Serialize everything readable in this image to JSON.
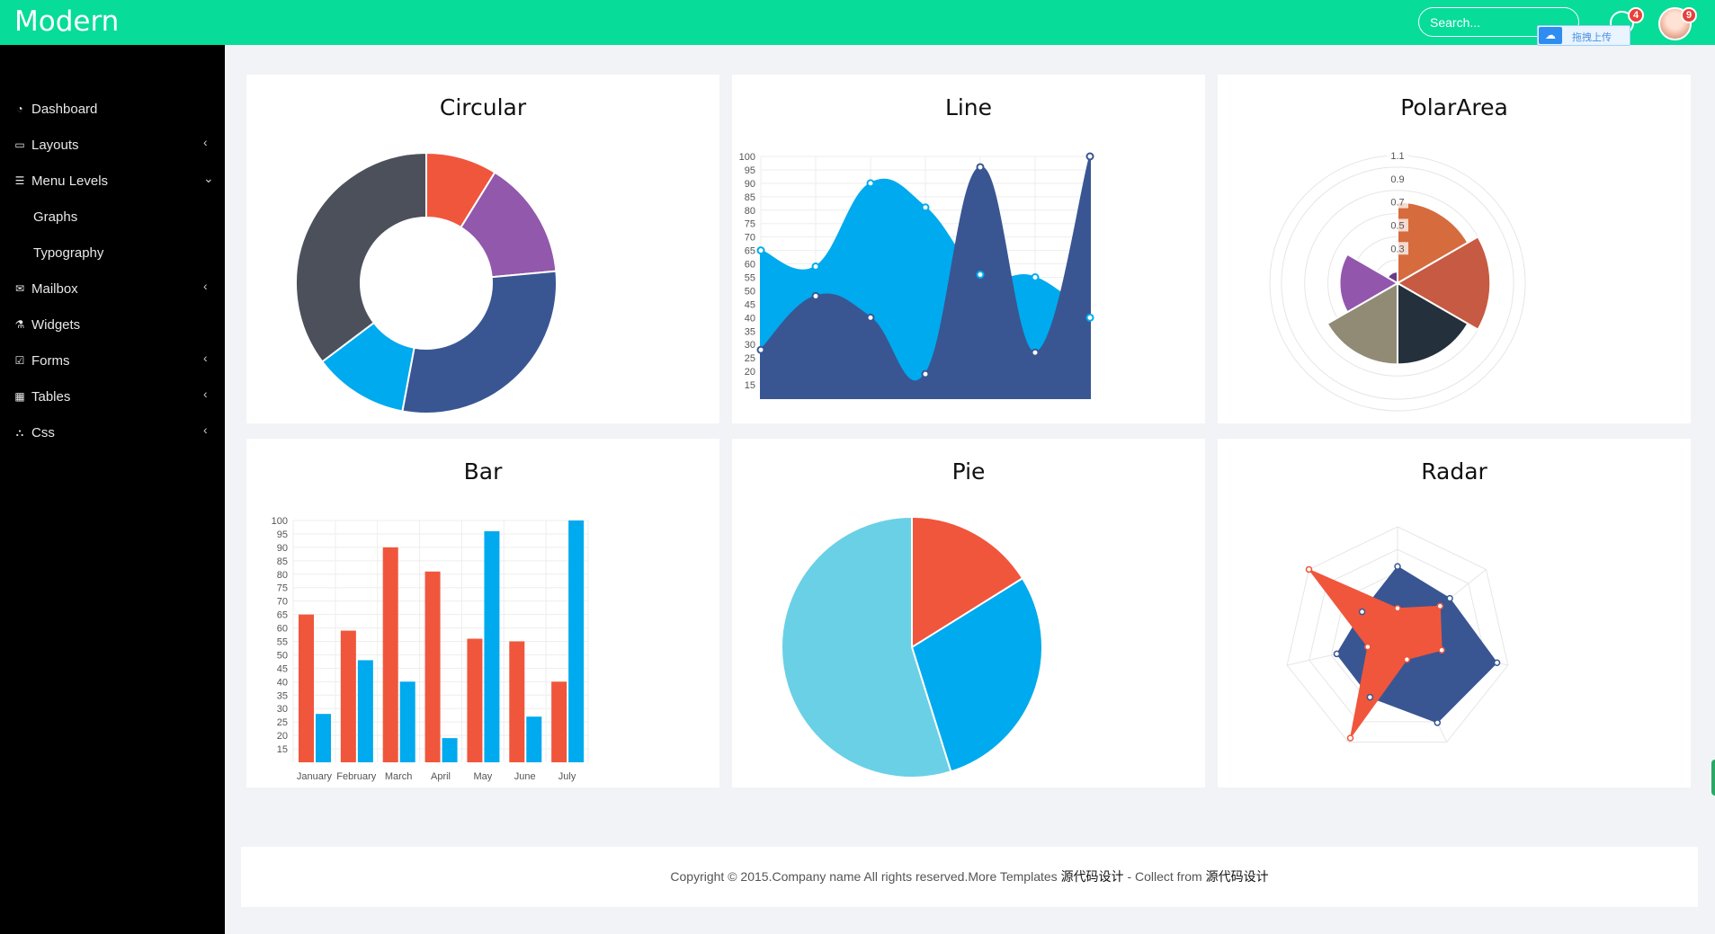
{
  "topbar": {
    "brand": "Modern",
    "search_placeholder": "Search...",
    "upload_label": "拖拽上传",
    "messages_count": "4",
    "notifications_count": "9"
  },
  "sidebar": {
    "items": [
      {
        "label": "Dashboard",
        "icon": "dashboard-icon",
        "chevron": ""
      },
      {
        "label": "Layouts",
        "icon": "laptop-icon",
        "chevron": "‹"
      },
      {
        "label": "Menu Levels",
        "icon": "list-icon",
        "chevron": "⌄"
      },
      {
        "label": "Graphs",
        "icon": "",
        "chevron": ""
      },
      {
        "label": "Typography",
        "icon": "",
        "chevron": ""
      },
      {
        "label": "Mailbox",
        "icon": "envelope-icon",
        "chevron": "‹"
      },
      {
        "label": "Widgets",
        "icon": "flask-icon",
        "chevron": ""
      },
      {
        "label": "Forms",
        "icon": "checkbox-icon",
        "chevron": "‹"
      },
      {
        "label": "Tables",
        "icon": "table-icon",
        "chevron": "‹"
      },
      {
        "label": "Css",
        "icon": "sitemap-icon",
        "chevron": "‹"
      }
    ]
  },
  "cards": {
    "circular": "Circular",
    "line": "Line",
    "polar": "PolarArea",
    "bar": "Bar",
    "pie": "Pie",
    "radar": "Radar"
  },
  "colors": {
    "accent": "#07dc99",
    "red": "#f0563c",
    "purple": "#9258ab",
    "navy": "#395693",
    "blue": "#00aaee",
    "dark": "#4c505b",
    "lightblue": "#6ad0e5",
    "polar_orange": "#d66b3e",
    "polar_brown": "#c75a42",
    "polar_dark": "#24303b",
    "polar_olive": "#918b76",
    "polar_purple": "#9257ad"
  },
  "chart_data": [
    {
      "type": "pie",
      "name": "Circular",
      "variant": "doughnut",
      "values": [
        30,
        50,
        100,
        40,
        120
      ],
      "colors": [
        "#f0563c",
        "#9258ab",
        "#395693",
        "#00aaee",
        "#4c505b"
      ]
    },
    {
      "type": "line",
      "name": "Line",
      "ylim": [
        10,
        100
      ],
      "yticks": [
        100,
        95,
        90,
        85,
        80,
        75,
        70,
        65,
        60,
        55,
        50,
        45,
        40,
        35,
        30,
        25,
        20,
        15
      ],
      "series": [
        {
          "values": [
            65,
            59,
            90,
            81,
            56,
            55,
            40
          ],
          "color": "#00aaee"
        },
        {
          "values": [
            28,
            48,
            40,
            19,
            96,
            27,
            100
          ],
          "color": "#395693"
        }
      ]
    },
    {
      "type": "polar",
      "name": "PolarArea",
      "rmax": 1.1,
      "ticks": [
        "1.1",
        "0.9",
        "0.7",
        "0.5",
        "0.3"
      ],
      "values": [
        0.7,
        0.8,
        0.7,
        0.7,
        0.5,
        0.1
      ],
      "colors": [
        "#d66b3e",
        "#c75a42",
        "#24303b",
        "#918b76",
        "#9257ad",
        "#6b3b86"
      ]
    },
    {
      "type": "bar",
      "name": "Bar",
      "categories": [
        "January",
        "February",
        "March",
        "April",
        "May",
        "June",
        "July"
      ],
      "ylim": [
        10,
        100
      ],
      "yticks": [
        100,
        95,
        90,
        85,
        80,
        75,
        70,
        65,
        60,
        55,
        50,
        45,
        40,
        35,
        30,
        25,
        20,
        15
      ],
      "series": [
        {
          "values": [
            65,
            59,
            90,
            81,
            56,
            55,
            40
          ],
          "color": "#f0563c"
        },
        {
          "values": [
            28,
            48,
            40,
            19,
            96,
            27,
            100
          ],
          "color": "#00aaee"
        }
      ]
    },
    {
      "type": "pie",
      "name": "Pie",
      "values": [
        50,
        90,
        170
      ],
      "colors": [
        "#f0563c",
        "#00aaee",
        "#6ad0e5"
      ]
    },
    {
      "type": "radar",
      "name": "Radar",
      "rmax": 100,
      "series": [
        {
          "values": [
            65,
            59,
            90,
            81,
            56,
            55,
            40
          ],
          "color": "#395693"
        },
        {
          "values": [
            28,
            48,
            40,
            19,
            96,
            27,
            100
          ],
          "color": "#f0563c"
        }
      ]
    }
  ],
  "footer": {
    "prefix": "Copyright © 2015.Company name All rights reserved.More Templates ",
    "link1": "源代码设计",
    "mid": " - Collect from ",
    "link2": "源代码设计"
  }
}
